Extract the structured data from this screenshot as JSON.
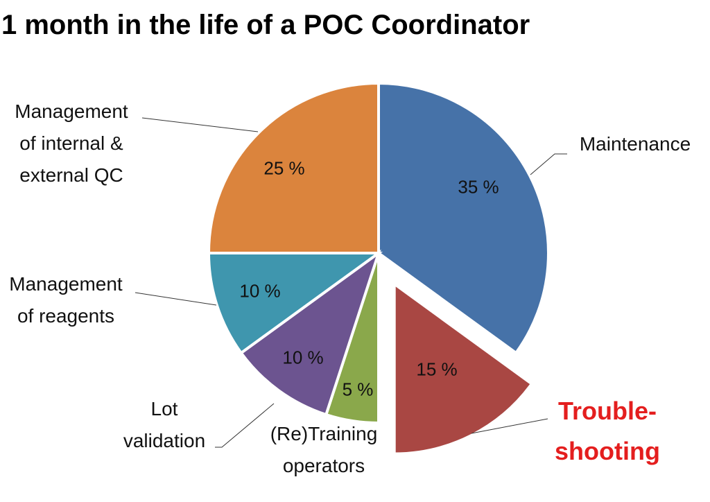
{
  "chart_data": {
    "type": "pie",
    "title": "1 month in the life of a POC Coordinator",
    "categories": [
      "Maintenance",
      "Trouble-\nshooting",
      "(Re)Training\noperators",
      "Lot\nvalidation",
      "Management\nof reagents",
      "Management\nof internal &\nexternal QC"
    ],
    "values": [
      35,
      15,
      5,
      10,
      10,
      25
    ],
    "value_labels": [
      "35 %",
      "15 %",
      "5 %",
      "10 %",
      "10 %",
      "25 %"
    ],
    "colors": [
      "#4672a8",
      "#a94743",
      "#8aa84b",
      "#6c5490",
      "#3f96ae",
      "#db843d"
    ],
    "exploded": [
      false,
      true,
      false,
      false,
      false,
      false
    ]
  }
}
